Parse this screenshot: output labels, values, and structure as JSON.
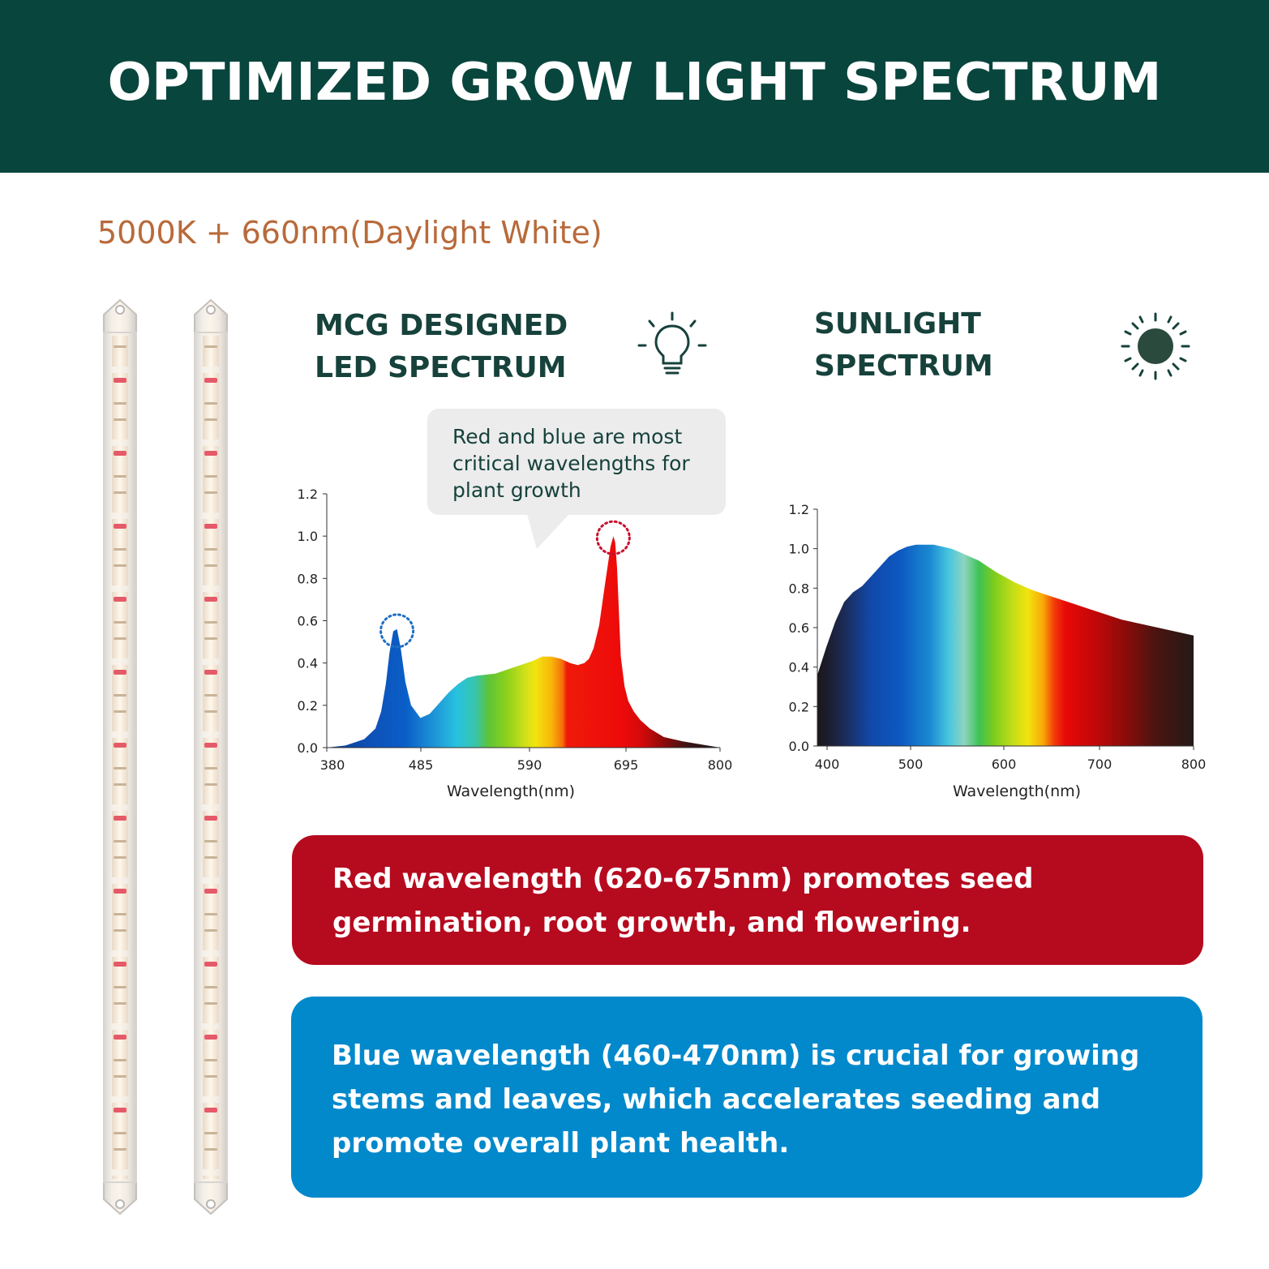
{
  "header": {
    "title": "OPTIMIZED GROW LIGHT SPECTRUM"
  },
  "subtitle": "5000K + 660nm(Daylight White)",
  "led_section": {
    "title_line1": "MCG DESIGNED",
    "title_line2": "LED SPECTRUM",
    "icon": "light-bulb-icon"
  },
  "sun_section": {
    "title_line1": "SUNLIGHT",
    "title_line2": "SPECTRUM",
    "icon": "sun-icon"
  },
  "callout": {
    "text": "Red and blue are most critical wavelengths for plant growth"
  },
  "red_info": {
    "text": "Red wavelength (620-675nm) promotes seed germination, root growth, and flowering."
  },
  "blue_info": {
    "text": "Blue wavelength (460-470nm) is crucial for growing stems and leaves, which accelerates seeding and promote overall plant health."
  },
  "colors": {
    "header_bg": "#08453d",
    "title_text": "#16423b",
    "subtitle_text": "#b86a3a",
    "red_box": "#b60a1f",
    "blue_box": "#0289cb",
    "blue_peak_marker": "#1e6fc4",
    "red_peak_marker": "#c8102e"
  },
  "chart_data": [
    {
      "type": "area",
      "title": "",
      "xlabel": "Wavelength(nm)",
      "ylabel": "",
      "xlim": [
        380,
        800
      ],
      "ylim": [
        0,
        1.2
      ],
      "x_ticks": [
        "380",
        "485",
        "590",
        "695",
        "800"
      ],
      "y_ticks": [
        "1.2",
        "1.0",
        "0.8",
        "0.6",
        "0.4",
        "0.2",
        "0.0"
      ],
      "grid": false,
      "fill": "visible-spectrum gradient",
      "series": [
        {
          "x": [
            380,
            400,
            420,
            432,
            438,
            443,
            447,
            451,
            455,
            459,
            464,
            470,
            480,
            490,
            500,
            510,
            520,
            530,
            540,
            560,
            580,
            600,
            610,
            620,
            630,
            640,
            648,
            655,
            660,
            665,
            671,
            677,
            683,
            686,
            688,
            690,
            692,
            694,
            698,
            702,
            708,
            715,
            725,
            740,
            760,
            780,
            800
          ],
          "y": [
            0.0,
            0.01,
            0.04,
            0.09,
            0.17,
            0.3,
            0.45,
            0.55,
            0.56,
            0.47,
            0.31,
            0.2,
            0.14,
            0.16,
            0.21,
            0.26,
            0.3,
            0.33,
            0.34,
            0.35,
            0.38,
            0.41,
            0.43,
            0.43,
            0.42,
            0.4,
            0.39,
            0.4,
            0.42,
            0.47,
            0.58,
            0.77,
            0.95,
            1.0,
            0.97,
            0.85,
            0.64,
            0.43,
            0.29,
            0.22,
            0.17,
            0.13,
            0.09,
            0.05,
            0.03,
            0.015,
            0.0
          ]
        }
      ],
      "peak_markers": [
        {
          "x": 455,
          "y": 0.56,
          "color": "blue"
        },
        {
          "x": 686,
          "y": 1.0,
          "color": "red"
        }
      ]
    },
    {
      "type": "area",
      "title": "",
      "xlabel": "Wavelength(nm)",
      "ylabel": "",
      "xlim": [
        380,
        800
      ],
      "ylim": [
        0,
        1.2
      ],
      "x_ticks": [
        "400",
        "500",
        "600",
        "700",
        "800"
      ],
      "y_ticks": [
        "1.2",
        "1.0",
        "0.8",
        "0.6",
        "0.4",
        "0.2",
        "0.0"
      ],
      "grid": false,
      "fill": "visible-spectrum gradient",
      "series": [
        {
          "x": [
            380,
            390,
            400,
            410,
            420,
            430,
            440,
            450,
            460,
            470,
            480,
            490,
            500,
            510,
            520,
            530,
            540,
            550,
            560,
            580,
            600,
            620,
            640,
            660,
            680,
            700,
            720,
            740,
            760,
            780,
            800
          ],
          "y": [
            0.36,
            0.5,
            0.63,
            0.73,
            0.78,
            0.81,
            0.86,
            0.91,
            0.96,
            0.99,
            1.01,
            1.02,
            1.02,
            1.02,
            1.01,
            1.0,
            0.98,
            0.96,
            0.94,
            0.88,
            0.83,
            0.79,
            0.76,
            0.73,
            0.7,
            0.67,
            0.64,
            0.62,
            0.6,
            0.58,
            0.56
          ]
        }
      ]
    }
  ]
}
